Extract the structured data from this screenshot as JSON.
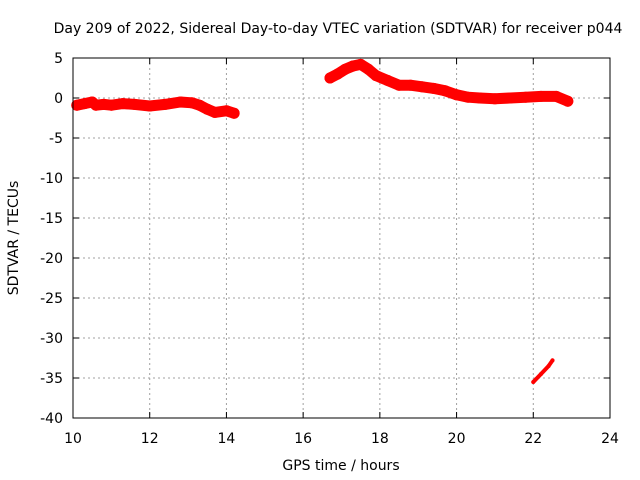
{
  "chart_data": {
    "type": "line",
    "title": "Day 209 of 2022, Sidereal Day-to-day VTEC variation (SDTVAR) for receiver p044",
    "xlabel": "GPS time / hours",
    "ylabel": "SDTVAR / TECUs",
    "xlim": [
      10,
      24
    ],
    "ylim": [
      -40,
      5
    ],
    "xticks": [
      10,
      12,
      14,
      16,
      18,
      20,
      22,
      24
    ],
    "yticks": [
      5,
      0,
      -5,
      -10,
      -15,
      -20,
      -25,
      -30,
      -35,
      -40
    ],
    "xtick_labels": [
      "10",
      "12",
      "14",
      "16",
      "18",
      "20",
      "22",
      "24"
    ],
    "ytick_labels": [
      "5",
      "0",
      "-5",
      "-10",
      "-15",
      "-20",
      "-25",
      "-30",
      "-35",
      "-40"
    ],
    "grid": true,
    "color": "#ff0000",
    "series": [
      {
        "name": "segment-1",
        "x": [
          10.1,
          10.3,
          10.5,
          10.6,
          10.8,
          11.0,
          11.3,
          11.6,
          12.0,
          12.4,
          12.8,
          13.1,
          13.3,
          13.5,
          13.7,
          14.0,
          14.2
        ],
        "y": [
          -0.9,
          -0.7,
          -0.5,
          -0.9,
          -0.8,
          -0.9,
          -0.7,
          -0.8,
          -1.0,
          -0.8,
          -0.5,
          -0.6,
          -0.9,
          -1.4,
          -1.8,
          -1.6,
          -1.9
        ]
      },
      {
        "name": "segment-2",
        "x": [
          16.7,
          16.9,
          17.1,
          17.3,
          17.5,
          17.7,
          17.9,
          18.2,
          18.5,
          18.8,
          19.1,
          19.4,
          19.7,
          20.0,
          20.3,
          20.6,
          21.0,
          21.4,
          21.8,
          22.2,
          22.6,
          22.9
        ],
        "y": [
          2.5,
          3.0,
          3.6,
          4.0,
          4.2,
          3.6,
          2.8,
          2.2,
          1.6,
          1.6,
          1.4,
          1.2,
          0.9,
          0.4,
          0.1,
          0.0,
          -0.1,
          0.0,
          0.1,
          0.2,
          0.2,
          -0.4
        ]
      },
      {
        "name": "segment-3",
        "x": [
          22.0,
          22.2,
          22.4,
          22.5
        ],
        "y": [
          -35.5,
          -34.5,
          -33.5,
          -32.8
        ]
      }
    ]
  }
}
